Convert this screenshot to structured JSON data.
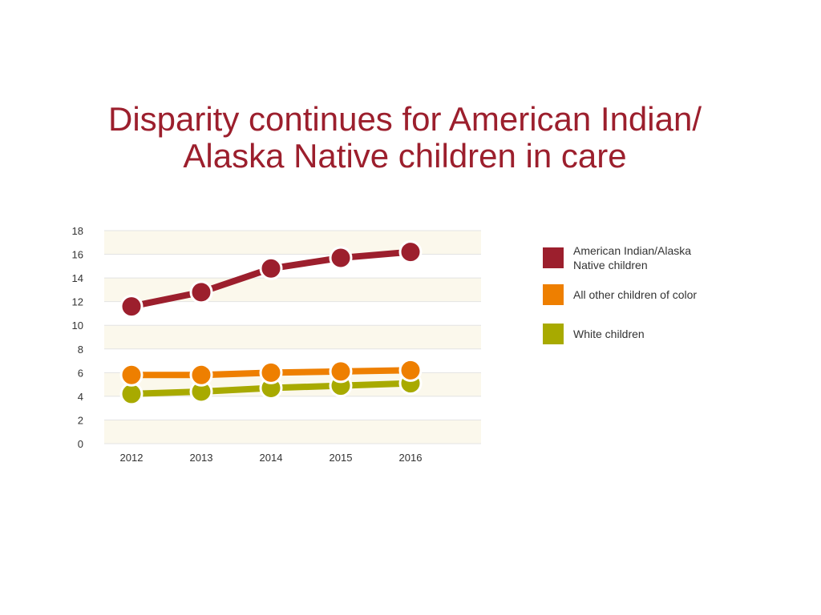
{
  "title_line1": "Disparity continues for American Indian/",
  "title_line2": "Alaska Native children in care",
  "chart_data": {
    "type": "line",
    "categories": [
      "2012",
      "2013",
      "2014",
      "2015",
      "2016"
    ],
    "series": [
      {
        "name": "American Indian/Alaska Native children",
        "color": "#9c1f2d",
        "values": [
          11.6,
          12.8,
          14.8,
          15.7,
          16.2
        ]
      },
      {
        "name": "All other children of color",
        "color": "#ee7f00",
        "values": [
          5.8,
          5.8,
          6.0,
          6.1,
          6.2
        ]
      },
      {
        "name": "White children",
        "color": "#a8aa00",
        "values": [
          4.2,
          4.4,
          4.7,
          4.9,
          5.1
        ]
      }
    ],
    "yticks": [
      0,
      2,
      4,
      6,
      8,
      10,
      12,
      14,
      16,
      18
    ],
    "ylim": [
      0,
      18
    ],
    "grid": true,
    "legend_position": "right"
  }
}
